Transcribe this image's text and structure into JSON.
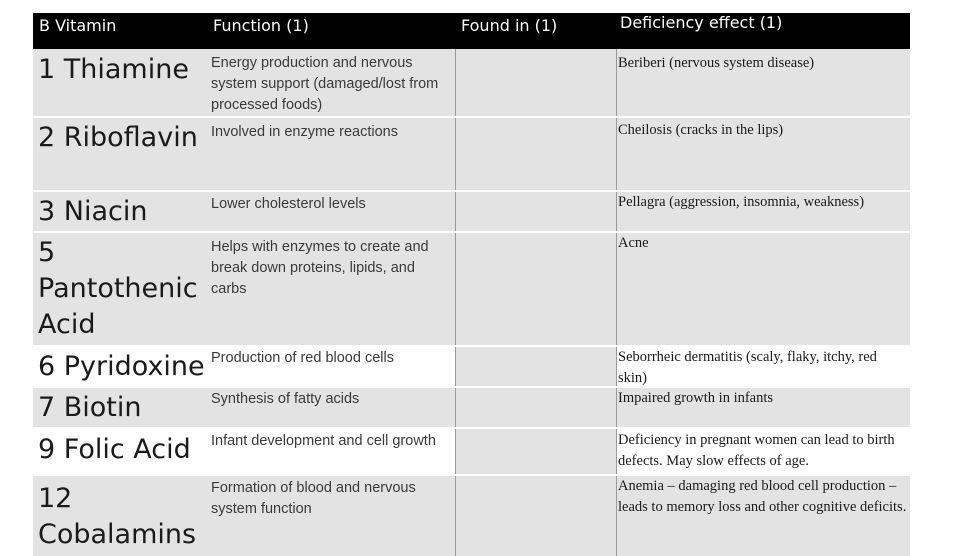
{
  "headers": {
    "vitamin": "B Vitamin",
    "function": "Function (1)",
    "found_in": "Found in (1)",
    "deficiency": "Deficiency effect (1)"
  },
  "rows": [
    {
      "name": "1 Thiamine",
      "function": "Energy production and nervous system support (damaged/lost from processed foods)",
      "found_in": "",
      "deficiency": "Beriberi (nervous system disease)"
    },
    {
      "name": "2 Riboflavin",
      "function": "Involved in enzyme reactions",
      "found_in": "",
      "deficiency": "Cheilosis (cracks in the lips)"
    },
    {
      "name": "3 Niacin",
      "function": "Lower cholesterol levels",
      "found_in": "",
      "deficiency": "Pellagra (aggression, insomnia, weakness)"
    },
    {
      "name": "5 Pantothenic Acid",
      "function": "Helps with enzymes to create and break down proteins, lipids, and carbs",
      "found_in": "",
      "deficiency": "Acne"
    },
    {
      "name": "6 Pyridoxine",
      "function": "Production of red blood cells",
      "found_in": "",
      "deficiency": "Seborrheic dermatitis (scaly, flaky, itchy, red skin)"
    },
    {
      "name": "7 Biotin",
      "function": "Synthesis of fatty acids",
      "found_in": "",
      "deficiency": "Impaired growth in infants"
    },
    {
      "name": "9 Folic Acid",
      "function": "Infant development and cell growth",
      "found_in": "",
      "deficiency": "Deficiency in pregnant women can lead to birth defects. May slow effects of age."
    },
    {
      "name": "12 Cobalamins",
      "function": "Formation of blood and nervous system function",
      "found_in": "",
      "deficiency": "Anemia – damaging red blood cell production – leads to memory loss and other cognitive deficits."
    }
  ]
}
